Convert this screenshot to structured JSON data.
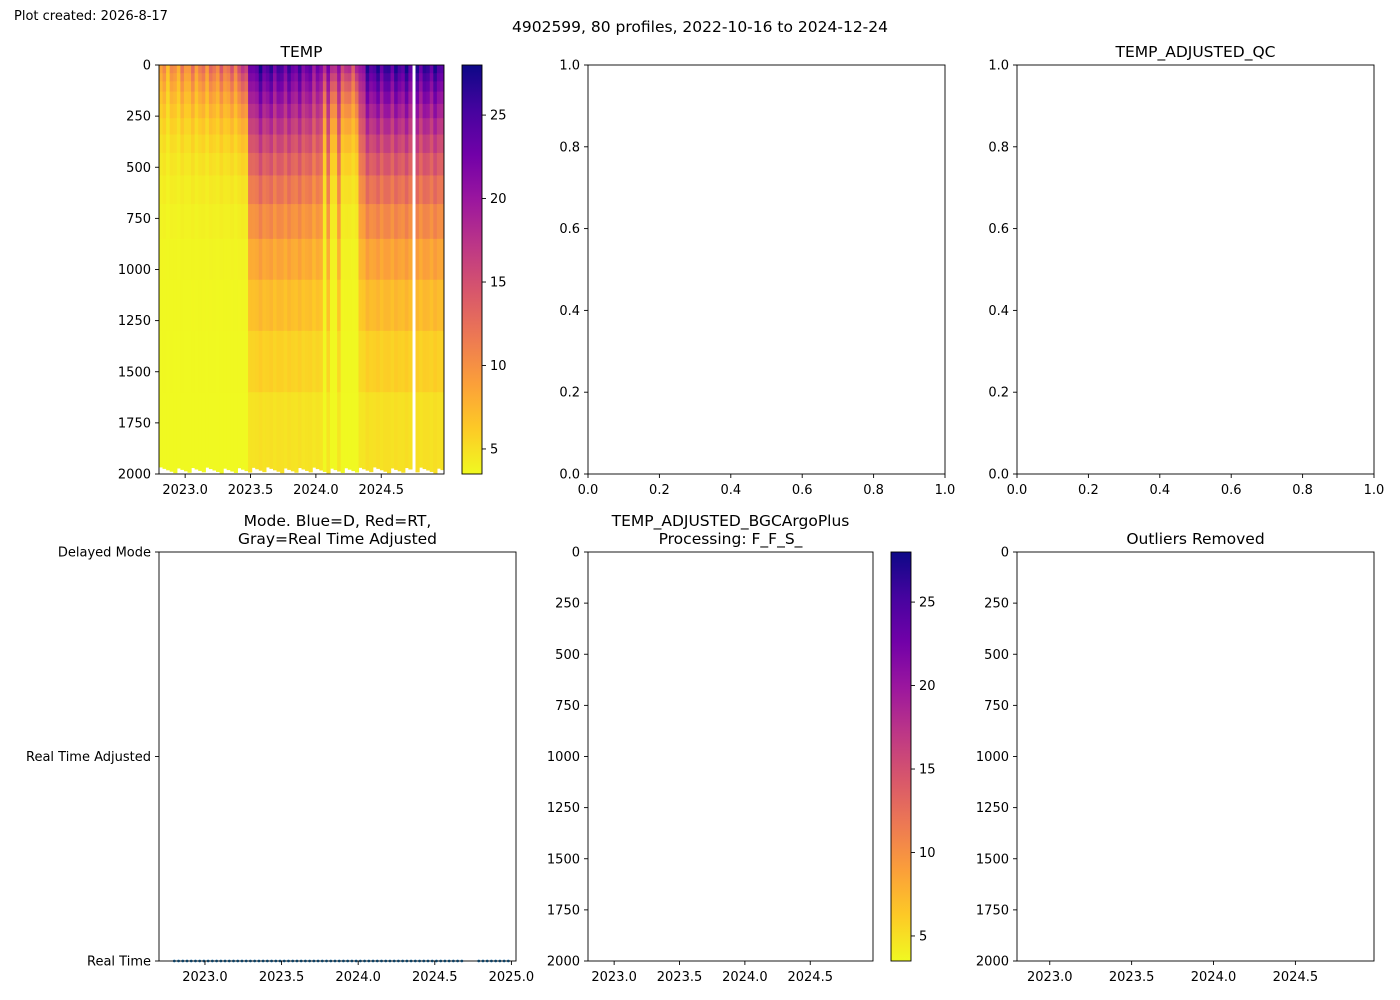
{
  "figure": {
    "created_note": "Plot created: 2026-8-17",
    "suptitle": "4902599, 80 profiles, 2022-10-16 to 2024-12-24"
  },
  "colors": {
    "mode_points": "#1f77b4",
    "colormap": [
      "#f0f921",
      "#fdca26",
      "#fb9f3a",
      "#ed7953",
      "#d8576b",
      "#bd3786",
      "#9c179e",
      "#7201a8",
      "#46039f",
      "#0d0887"
    ]
  },
  "chart_data": [
    {
      "id": "temp",
      "type": "heatmap",
      "title": "TEMP",
      "xlabel": "",
      "ylabel": "",
      "xlim": [
        2022.8,
        2024.98
      ],
      "ylim": [
        2000,
        0
      ],
      "y_inverted": true,
      "x_ticks": [
        2023.0,
        2023.5,
        2024.0,
        2024.5
      ],
      "x_tick_labels": [
        "2023.0",
        "2023.5",
        "2024.0",
        "2024.5"
      ],
      "y_ticks": [
        0,
        250,
        500,
        750,
        1000,
        1250,
        1500,
        1750,
        2000
      ],
      "y_tick_labels": [
        "0",
        "250",
        "500",
        "750",
        "1000",
        "1250",
        "1500",
        "1750",
        "2000"
      ],
      "colorbar": {
        "range": [
          3.5,
          28
        ],
        "ticks": [
          5,
          10,
          15,
          20,
          25
        ],
        "tick_labels": [
          "5",
          "10",
          "15",
          "20",
          "25"
        ]
      },
      "n_profiles": 80,
      "gap_date": 2024.74,
      "surface_temp_by_date": [
        [
          2022.8,
          9
        ],
        [
          2023.4,
          14
        ],
        [
          2023.55,
          26
        ],
        [
          2023.9,
          24
        ],
        [
          2024.3,
          17
        ],
        [
          2024.4,
          26
        ],
        [
          2024.98,
          26
        ]
      ],
      "deep_temp": 3.5
    },
    {
      "id": "empty-top-middle",
      "type": "scatter",
      "title": "",
      "xlim": [
        0,
        1
      ],
      "ylim": [
        0,
        1
      ],
      "x_ticks": [
        0,
        0.2,
        0.4,
        0.6,
        0.8,
        1.0
      ],
      "x_tick_labels": [
        "0.0",
        "0.2",
        "0.4",
        "0.6",
        "0.8",
        "1.0"
      ],
      "y_ticks": [
        0,
        0.2,
        0.4,
        0.6,
        0.8,
        1.0
      ],
      "y_tick_labels": [
        "0.0",
        "0.2",
        "0.4",
        "0.6",
        "0.8",
        "1.0"
      ],
      "series": []
    },
    {
      "id": "temp-adjusted-qc",
      "type": "scatter",
      "title": "TEMP_ADJUSTED_QC",
      "xlim": [
        0,
        1
      ],
      "ylim": [
        0,
        1
      ],
      "x_ticks": [
        0,
        0.2,
        0.4,
        0.6,
        0.8,
        1.0
      ],
      "x_tick_labels": [
        "0.0",
        "0.2",
        "0.4",
        "0.6",
        "0.8",
        "1.0"
      ],
      "y_ticks": [
        0,
        0.2,
        0.4,
        0.6,
        0.8,
        1.0
      ],
      "y_tick_labels": [
        "0.0",
        "0.2",
        "0.4",
        "0.6",
        "0.8",
        "1.0"
      ],
      "series": []
    },
    {
      "id": "mode",
      "type": "scatter",
      "title": "Mode. Blue=D, Red=RT,\nGray=Real Time Adjusted",
      "title_lines": [
        "Mode. Blue=D, Red=RT,",
        "Gray=Real Time Adjusted"
      ],
      "xlim": [
        2022.7,
        2025.03
      ],
      "ylim": [
        0,
        2
      ],
      "x_ticks": [
        2023.0,
        2023.5,
        2024.0,
        2024.5,
        2025.0
      ],
      "x_tick_labels": [
        "2023.0",
        "2023.5",
        "2024.0",
        "2024.5",
        "2025.0"
      ],
      "y_ticks": [
        0,
        1,
        2
      ],
      "y_tick_labels": [
        "Real Time",
        "Real Time Adjusted",
        "Delayed Mode"
      ],
      "series": [
        {
          "start": 2022.8,
          "end": 2024.98,
          "count": 80,
          "gap_from": 2024.69,
          "gap_to": 2024.76,
          "value": 0
        }
      ]
    },
    {
      "id": "temp-adjusted-bgc",
      "type": "heatmap",
      "title": "TEMP_ADJUSTED_BGCArgoPlus\nProcessing: F_F_S_",
      "title_lines": [
        "TEMP_ADJUSTED_BGCArgoPlus",
        "Processing: F_F_S_"
      ],
      "xlim": [
        2022.8,
        2024.98
      ],
      "ylim": [
        2000,
        0
      ],
      "y_inverted": true,
      "x_ticks": [
        2023.0,
        2023.5,
        2024.0,
        2024.5
      ],
      "x_tick_labels": [
        "2023.0",
        "2023.5",
        "2024.0",
        "2024.5"
      ],
      "y_ticks": [
        0,
        250,
        500,
        750,
        1000,
        1250,
        1500,
        1750,
        2000
      ],
      "y_tick_labels": [
        "0",
        "250",
        "500",
        "750",
        "1000",
        "1250",
        "1500",
        "1750",
        "2000"
      ],
      "colorbar": {
        "range": [
          3.5,
          28
        ],
        "ticks": [
          5,
          10,
          15,
          20,
          25
        ],
        "tick_labels": [
          "5",
          "10",
          "15",
          "20",
          "25"
        ]
      }
    },
    {
      "id": "outliers-removed",
      "type": "scatter",
      "title": "Outliers Removed",
      "xlim": [
        2022.8,
        2024.98
      ],
      "ylim": [
        2000,
        0
      ],
      "y_inverted": true,
      "x_ticks": [
        2023.0,
        2023.5,
        2024.0,
        2024.5
      ],
      "x_tick_labels": [
        "2023.0",
        "2023.5",
        "2024.0",
        "2024.5"
      ],
      "y_ticks": [
        0,
        250,
        500,
        750,
        1000,
        1250,
        1500,
        1750,
        2000
      ],
      "y_tick_labels": [
        "0",
        "250",
        "500",
        "750",
        "1000",
        "1250",
        "1500",
        "1750",
        "2000"
      ],
      "series": []
    }
  ]
}
